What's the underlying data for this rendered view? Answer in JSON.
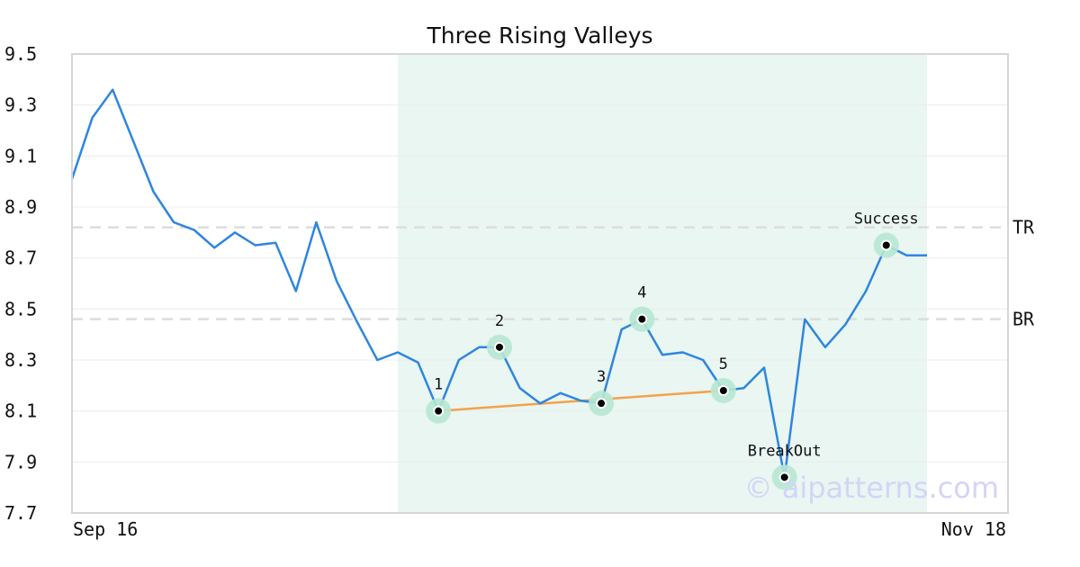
{
  "chart_data": {
    "type": "line",
    "title": "Three Rising Valleys",
    "ylim": [
      7.7,
      9.5
    ],
    "yticks": [
      "7.7",
      "7.9",
      "8.1",
      "8.3",
      "8.5",
      "8.7",
      "8.9",
      "9.1",
      "9.3",
      "9.5"
    ],
    "xtick_labels": [
      "Sep 16",
      "Nov 18"
    ],
    "grid": true,
    "series": [
      {
        "values": [
          9.01,
          9.25,
          9.36,
          9.16,
          8.96,
          8.84,
          8.81,
          8.74,
          8.8,
          8.75,
          8.76,
          8.57,
          8.84,
          8.61,
          8.45,
          8.3,
          8.33,
          8.29,
          8.1,
          8.3,
          8.35,
          8.35,
          8.19,
          8.13,
          8.17,
          8.14,
          8.13,
          8.42,
          8.46,
          8.32,
          8.33,
          8.3,
          8.18,
          8.19,
          8.27,
          7.84,
          8.46,
          8.35,
          8.44,
          8.57,
          8.75,
          8.71,
          8.71
        ],
        "color": "#2e86de"
      }
    ],
    "pattern_region": {
      "start_index": 16,
      "end_index": 42,
      "color": "#e9f6f1"
    },
    "horizontal_lines": [
      {
        "label": "TR",
        "value": 8.82
      },
      {
        "label": "BR",
        "value": 8.46
      }
    ],
    "pattern_points": [
      {
        "label": "1",
        "index": 18,
        "value": 8.1
      },
      {
        "label": "2",
        "index": 21,
        "value": 8.35
      },
      {
        "label": "3",
        "index": 26,
        "value": 8.13
      },
      {
        "label": "4",
        "index": 28,
        "value": 8.46
      },
      {
        "label": "5",
        "index": 32,
        "value": 8.18
      }
    ],
    "annotations": [
      {
        "label": "BreakOut",
        "index": 35,
        "value": 7.84
      },
      {
        "label": "Success",
        "index": 40,
        "value": 8.75
      }
    ],
    "trendline": {
      "from_index": 18,
      "from_value": 8.1,
      "to_index": 32,
      "to_value": 8.18,
      "color": "#f4a14a"
    },
    "watermark": "© aipatterns.com"
  }
}
